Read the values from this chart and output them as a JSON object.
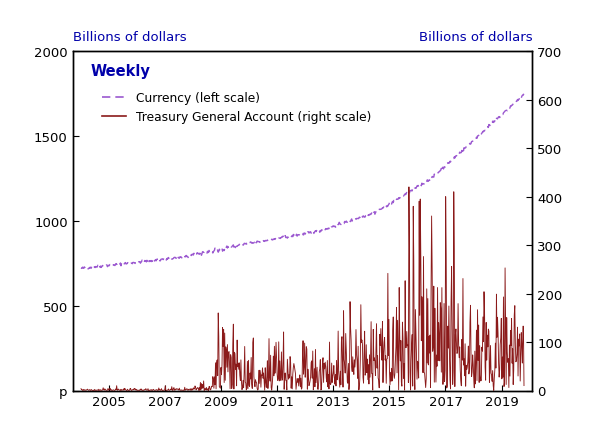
{
  "title_left": "Billions of dollars",
  "title_right": "Billions of dollars",
  "weekly_label": "Weekly",
  "legend_currency": "Currency (left scale)",
  "legend_tga": "Treasury General Account (right scale)",
  "currency_color": "#9B59D0",
  "tga_color": "#8B1A1A",
  "left_ylim": [
    0,
    2000
  ],
  "right_ylim": [
    0,
    700
  ],
  "left_yticks": [
    0,
    500,
    1000,
    1500,
    2000
  ],
  "right_yticks": [
    0,
    100,
    200,
    300,
    400,
    500,
    600,
    700
  ],
  "xlim_start": 2003.7,
  "xlim_end": 2020.1,
  "xticks": [
    2005,
    2007,
    2009,
    2011,
    2013,
    2015,
    2017,
    2019
  ],
  "background_color": "#ffffff"
}
